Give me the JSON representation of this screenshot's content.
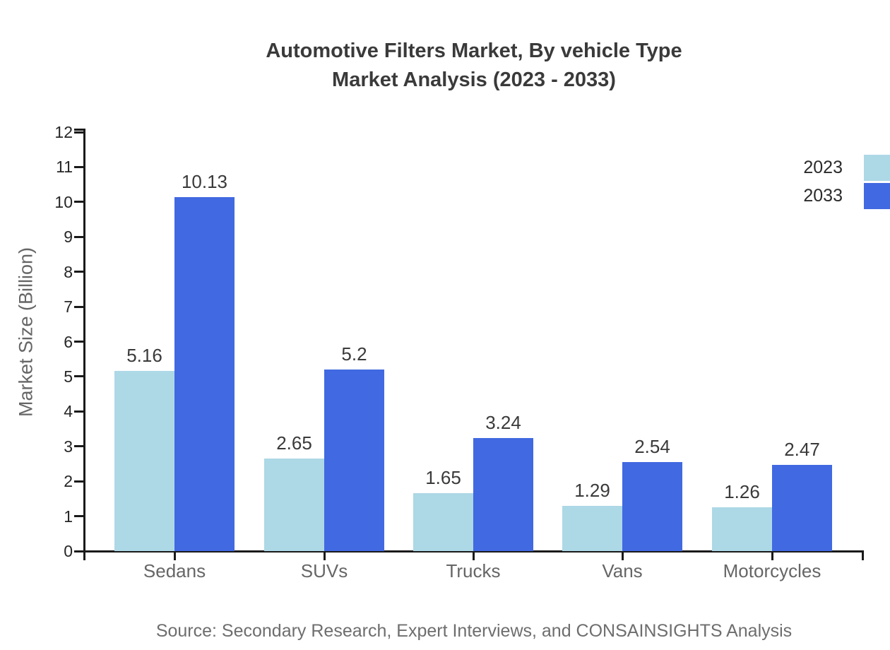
{
  "chart": {
    "title_line1": "Automotive Filters Market, By vehicle Type",
    "title_line2": "Market Analysis (2023 - 2033)",
    "ylabel": "Market Size (Billion)",
    "source": "Source: Secondary Research, Expert Interviews, and CONSAINSIGHTS Analysis"
  },
  "legend": {
    "position": "top-right",
    "items": [
      {
        "label": "2023",
        "color": "#ADD8E6"
      },
      {
        "label": "2033",
        "color": "#4169E1"
      }
    ]
  },
  "chart_data": {
    "type": "bar",
    "title": "Automotive Filters Market, By vehicle Type Market Analysis (2023 - 2033)",
    "categories": [
      "Sedans",
      "SUVs",
      "Trucks",
      "Vans",
      "Motorcycles"
    ],
    "series": [
      {
        "name": "2023",
        "color": "#ADD8E6",
        "values": [
          5.16,
          2.65,
          1.65,
          1.29,
          1.26
        ]
      },
      {
        "name": "2033",
        "color": "#4169E1",
        "values": [
          10.13,
          5.2,
          3.24,
          2.54,
          2.47
        ]
      }
    ],
    "xlabel": "",
    "ylabel": "Market Size (Billion)",
    "ylim": [
      0,
      12
    ],
    "yticks": [
      0,
      1,
      2,
      3,
      4,
      5,
      6,
      7,
      8,
      9,
      10,
      11,
      12
    ],
    "grid": false,
    "value_labels": true,
    "legend_position": "top-right"
  },
  "colors": {
    "series_2023": "#ADD8E6",
    "series_2033": "#4169E1",
    "axis": "#1a1a1a",
    "title_text": "#3a3a3a",
    "tick_text": "#262626",
    "category_text": "#666666",
    "source_text": "#6e6e6e"
  }
}
